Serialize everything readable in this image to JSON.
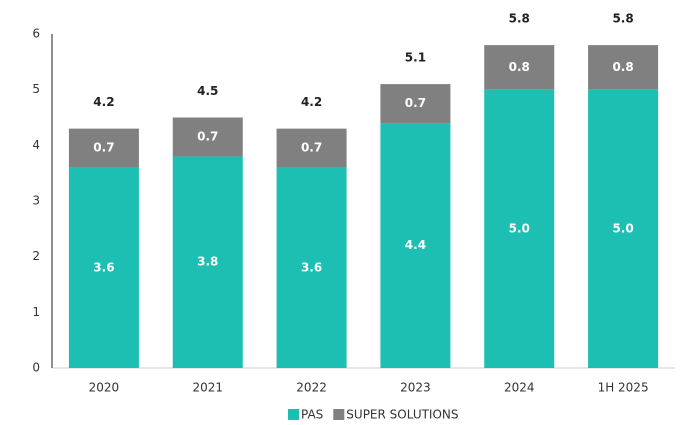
{
  "chart_data": {
    "type": "stacked_bar",
    "categories": [
      "2020",
      "2021",
      "2022",
      "2023",
      "2024",
      "1H 2025"
    ],
    "series": [
      {
        "name": "PAS",
        "color": "#1dbfb3",
        "values": [
          3.6,
          3.8,
          3.6,
          4.4,
          5.0,
          5.0
        ],
        "value_labels": [
          "3.6",
          "3.8",
          "3.6",
          "4.4",
          "5.0",
          "5.0"
        ]
      },
      {
        "name": "SUPER SOLUTIONS",
        "color": "#808080",
        "values": [
          0.7,
          0.7,
          0.7,
          0.7,
          0.8,
          0.8
        ],
        "value_labels": [
          "0.7",
          "0.7",
          "0.7",
          "0.7",
          "0.8",
          "0.8"
        ]
      }
    ],
    "totals": [
      4.2,
      4.5,
      4.2,
      5.1,
      5.8,
      5.8
    ],
    "ylim": [
      0,
      6
    ],
    "yticks": [
      0,
      1,
      2,
      3,
      4,
      5,
      6
    ],
    "grid": false,
    "legend": "bottom"
  }
}
